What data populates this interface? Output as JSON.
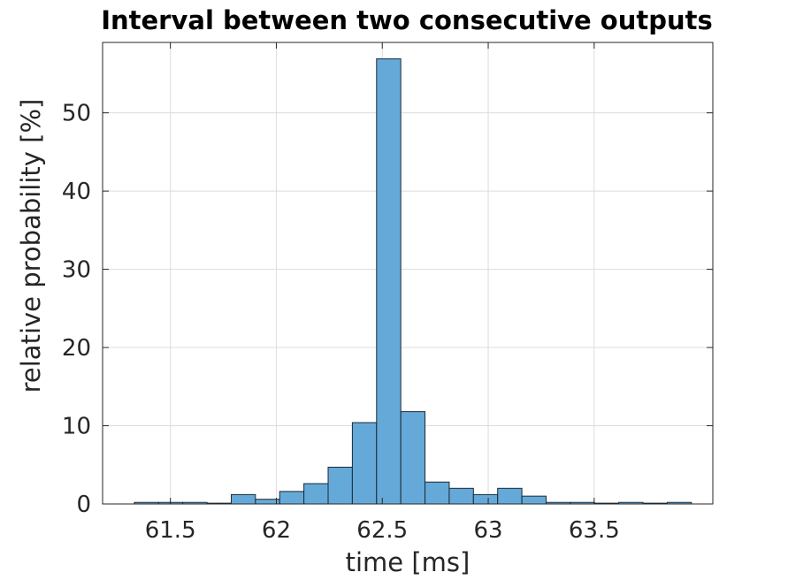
{
  "chart_data": {
    "type": "bar",
    "title": "Interval between two consecutive outputs",
    "xlabel": "time [ms]",
    "ylabel": "relative probability [%]",
    "xlim": [
      61.18,
      64.06
    ],
    "ylim": [
      0,
      59
    ],
    "xticks": [
      61.5,
      62,
      62.5,
      63,
      63.5
    ],
    "xtick_labels": [
      "61.5",
      "62",
      "62.5",
      "63",
      "63.5"
    ],
    "yticks": [
      0,
      10,
      20,
      30,
      40,
      50
    ],
    "ytick_labels": [
      "0",
      "10",
      "20",
      "30",
      "40",
      "50"
    ],
    "grid": true,
    "bin_width": 0.1143,
    "bin_start": 61.33,
    "values": [
      0.2,
      0.2,
      0.2,
      0.1,
      1.2,
      0.6,
      1.6,
      2.6,
      4.7,
      10.4,
      56.9,
      11.8,
      2.8,
      2.0,
      1.2,
      2.0,
      1.0,
      0.2,
      0.2,
      0.1,
      0.2,
      0.1,
      0.2
    ],
    "colors": {
      "bar_fill": "#65a9d9",
      "bar_edge": "#1a2a36"
    }
  }
}
